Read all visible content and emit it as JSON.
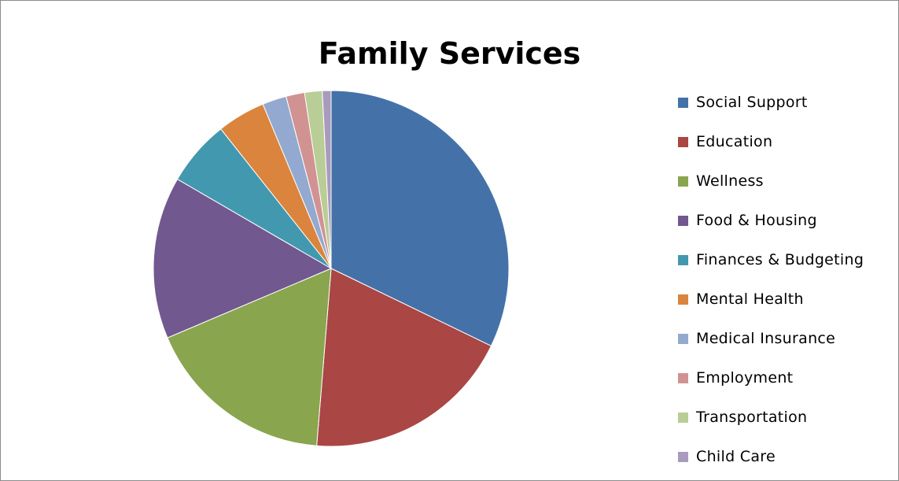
{
  "chart_data": {
    "type": "pie",
    "title": "Family Services",
    "categories": [
      "Social Support",
      "Education",
      "Wellness",
      "Food & Housing",
      "Finances & Budgeting",
      "Mental Health",
      "Medical Insurance",
      "Employment",
      "Transportation",
      "Child Care"
    ],
    "values": [
      32.3,
      19.2,
      17.4,
      14.8,
      6.0,
      4.4,
      2.2,
      1.7,
      1.6,
      0.8
    ],
    "colors": [
      "#4472a8",
      "#aa4644",
      "#89a54e",
      "#71588f",
      "#4298af",
      "#db843d",
      "#93a9cf",
      "#d19392",
      "#b9cd96",
      "#a99bbd"
    ],
    "legend": "right"
  }
}
